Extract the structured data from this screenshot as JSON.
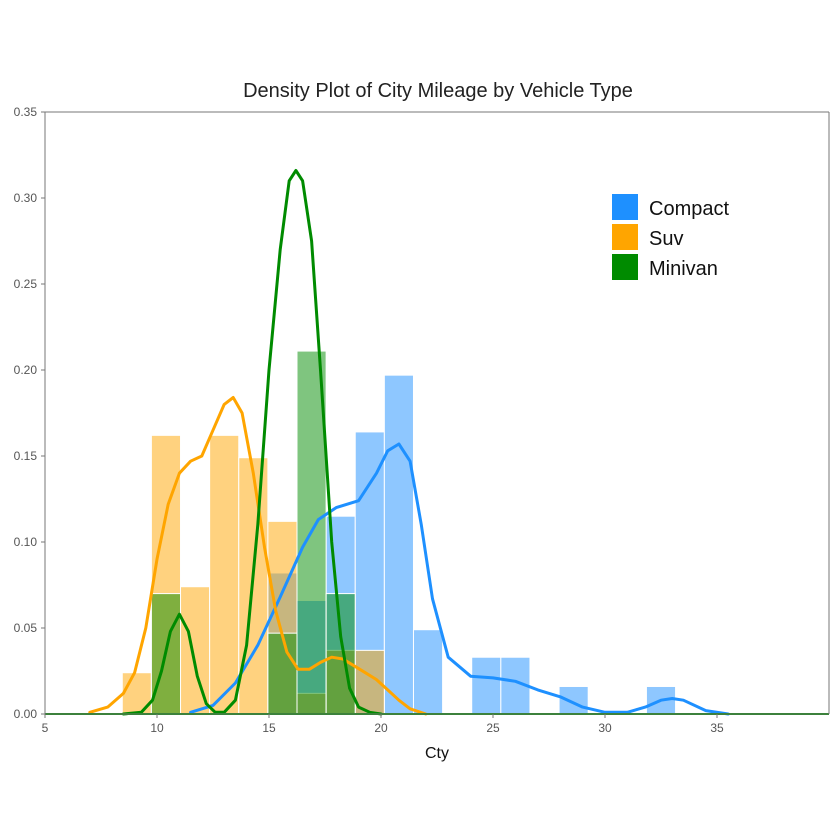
{
  "chart_data": {
    "type": "histogram-density",
    "title": "Density Plot of City Mileage by Vehicle Type",
    "xlabel": "Cty",
    "ylabel": "",
    "xlim": [
      5,
      40
    ],
    "ylim": [
      0,
      0.35
    ],
    "x_ticks": [
      5,
      10,
      15,
      20,
      25,
      30,
      35
    ],
    "y_ticks": [
      0,
      0.05,
      0.1,
      0.15,
      0.2,
      0.25,
      0.3,
      0.35
    ],
    "y_tick_labels": [
      "0.00",
      "0.05",
      "0.10",
      "0.15",
      "0.20",
      "0.25",
      "0.30",
      "0.35"
    ],
    "grid": false,
    "legend": {
      "placement": "top-right"
    },
    "bin_width": 1.3,
    "series": [
      {
        "name": "Compact",
        "color": "#1E90FF",
        "histogram": [
          {
            "x0": 14.95,
            "x1": 16.25,
            "density": 0.082
          },
          {
            "x0": 16.25,
            "x1": 17.55,
            "density": 0.066
          },
          {
            "x0": 17.55,
            "x1": 18.85,
            "density": 0.115
          },
          {
            "x0": 18.85,
            "x1": 20.15,
            "density": 0.164
          },
          {
            "x0": 20.15,
            "x1": 21.45,
            "density": 0.197
          },
          {
            "x0": 21.45,
            "x1": 22.75,
            "density": 0.049
          },
          {
            "x0": 24.05,
            "x1": 25.35,
            "density": 0.033
          },
          {
            "x0": 25.35,
            "x1": 26.65,
            "density": 0.033
          },
          {
            "x0": 27.95,
            "x1": 29.25,
            "density": 0.016
          },
          {
            "x0": 31.85,
            "x1": 33.15,
            "density": 0.016
          }
        ],
        "density": {
          "x": [
            11.5,
            12.5,
            13.5,
            14.5,
            15.5,
            16.5,
            17.2,
            18.0,
            19.0,
            19.8,
            20.3,
            20.8,
            21.3,
            21.8,
            22.3,
            23.0,
            24.0,
            25.0,
            26.0,
            27.0,
            28.0,
            29.0,
            30.0,
            31.0,
            31.8,
            32.5,
            33.0,
            33.5,
            34.5,
            35.5
          ],
          "y": [
            0.001,
            0.005,
            0.018,
            0.04,
            0.068,
            0.097,
            0.113,
            0.12,
            0.124,
            0.14,
            0.153,
            0.157,
            0.147,
            0.11,
            0.067,
            0.033,
            0.022,
            0.021,
            0.019,
            0.014,
            0.01,
            0.004,
            0.001,
            0.001,
            0.004,
            0.008,
            0.009,
            0.008,
            0.002,
            0.0
          ]
        }
      },
      {
        "name": "Suv",
        "color": "#FFA500",
        "histogram": [
          {
            "x0": 8.45,
            "x1": 9.75,
            "density": 0.024
          },
          {
            "x0": 9.75,
            "x1": 11.05,
            "density": 0.162
          },
          {
            "x0": 11.05,
            "x1": 12.35,
            "density": 0.074
          },
          {
            "x0": 12.35,
            "x1": 13.65,
            "density": 0.162
          },
          {
            "x0": 13.65,
            "x1": 14.95,
            "density": 0.149
          },
          {
            "x0": 14.95,
            "x1": 16.25,
            "density": 0.112
          },
          {
            "x0": 16.25,
            "x1": 17.55,
            "density": 0.012
          },
          {
            "x0": 17.55,
            "x1": 18.85,
            "density": 0.037
          },
          {
            "x0": 18.85,
            "x1": 20.15,
            "density": 0.037
          }
        ],
        "density": {
          "x": [
            7.0,
            7.8,
            8.5,
            9.0,
            9.5,
            10.0,
            10.5,
            11.0,
            11.5,
            12.0,
            12.5,
            13.0,
            13.4,
            13.8,
            14.3,
            14.8,
            15.3,
            15.8,
            16.3,
            16.8,
            17.3,
            17.8,
            18.3,
            18.8,
            19.3,
            19.8,
            20.3,
            20.8,
            21.3,
            22.0
          ],
          "y": [
            0.001,
            0.004,
            0.012,
            0.024,
            0.05,
            0.09,
            0.122,
            0.14,
            0.147,
            0.15,
            0.165,
            0.18,
            0.184,
            0.175,
            0.14,
            0.097,
            0.06,
            0.036,
            0.026,
            0.026,
            0.03,
            0.033,
            0.032,
            0.028,
            0.024,
            0.02,
            0.014,
            0.008,
            0.003,
            0.0
          ]
        }
      },
      {
        "name": "Minivan",
        "color": "#008B00",
        "histogram": [
          {
            "x0": 9.75,
            "x1": 11.05,
            "density": 0.07
          },
          {
            "x0": 14.95,
            "x1": 16.25,
            "density": 0.047
          },
          {
            "x0": 16.25,
            "x1": 17.55,
            "density": 0.211
          },
          {
            "x0": 17.55,
            "x1": 18.85,
            "density": 0.07
          }
        ],
        "density": {
          "x": [
            8.5,
            9.3,
            9.8,
            10.2,
            10.6,
            11.0,
            11.4,
            11.8,
            12.2,
            12.6,
            13.0,
            13.5,
            14.0,
            14.5,
            15.0,
            15.5,
            15.9,
            16.2,
            16.5,
            16.9,
            17.3,
            17.8,
            18.2,
            18.6,
            19.0,
            19.5,
            20.0
          ],
          "y": [
            0.0,
            0.001,
            0.008,
            0.025,
            0.048,
            0.058,
            0.048,
            0.022,
            0.006,
            0.001,
            0.001,
            0.008,
            0.04,
            0.11,
            0.2,
            0.27,
            0.31,
            0.316,
            0.31,
            0.275,
            0.2,
            0.1,
            0.045,
            0.015,
            0.004,
            0.001,
            0.0
          ]
        }
      }
    ]
  }
}
